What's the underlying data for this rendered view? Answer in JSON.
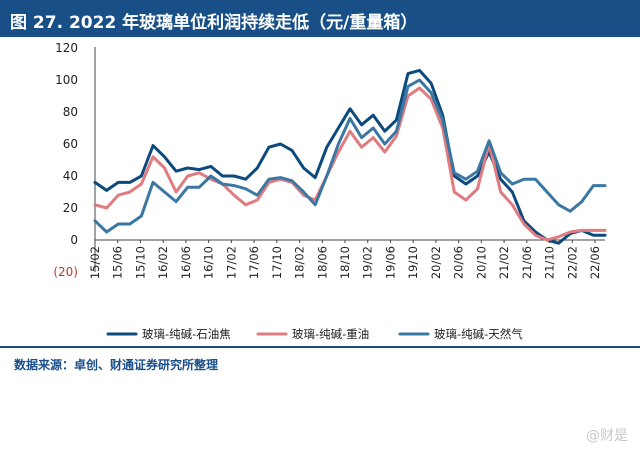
{
  "header": {
    "title": "图 27. 2022 年玻璃单位利润持续走低（元/重量箱）"
  },
  "source": {
    "text": "数据来源：卓创、财通证券研究所整理"
  },
  "watermark": {
    "text": "@财是"
  },
  "colors": {
    "title_bg": "#184f87",
    "s1": "#0c4a7d",
    "s2": "#e07b80",
    "s3": "#3a77a3"
  },
  "chart_data": {
    "type": "line",
    "title": "",
    "xlabel": "",
    "ylabel": "",
    "ylim": [
      -20,
      120
    ],
    "yticks": [
      -20,
      0,
      20,
      40,
      60,
      80,
      100,
      120
    ],
    "ytick_labels": [
      "(20)",
      "0",
      "20",
      "40",
      "60",
      "80",
      "100",
      "120"
    ],
    "xticks": [
      "15/02",
      "15/06",
      "15/10",
      "16/02",
      "16/06",
      "16/10",
      "17/02",
      "17/06",
      "17/10",
      "18/02",
      "18/06",
      "18/10",
      "19/02",
      "19/06",
      "19/10",
      "20/02",
      "20/06",
      "20/10",
      "21/02",
      "21/06",
      "21/10",
      "22/02",
      "22/06"
    ],
    "legend_position": "bottom",
    "x": [
      "15/02",
      "15/06",
      "15/10",
      "16/02",
      "16/06",
      "16/08",
      "16/10",
      "17/02",
      "17/06",
      "17/10",
      "18/02",
      "18/06",
      "18/10",
      "19/02",
      "19/06",
      "19/10",
      "20/01",
      "20/02",
      "20/03",
      "20/04",
      "20/06",
      "20/08",
      "20/10",
      "20/11",
      "20/12",
      "21/01",
      "21/02",
      "21/03",
      "21/04",
      "21/05",
      "21/06",
      "21/07",
      "21/08",
      "21/09",
      "21/10",
      "21/11",
      "21/12",
      "22/01",
      "22/02",
      "22/03",
      "22/04",
      "22/05",
      "22/06",
      "22/07",
      "22/08"
    ],
    "series": [
      {
        "name": "玻璃-纯碱-石油焦",
        "color": "#0c4a7d",
        "values": [
          36,
          31,
          36,
          36,
          40,
          59,
          52,
          43,
          45,
          44,
          46,
          40,
          40,
          38,
          45,
          58,
          60,
          56,
          45,
          39,
          58,
          70,
          82,
          72,
          78,
          68,
          75,
          104,
          106,
          98,
          78,
          40,
          35,
          40,
          55,
          38,
          30,
          12,
          5,
          0,
          -2,
          4,
          6,
          3,
          3
        ]
      },
      {
        "name": "玻璃-纯碱-重油",
        "color": "#e07b80",
        "values": [
          22,
          20,
          28,
          30,
          35,
          52,
          45,
          30,
          40,
          42,
          38,
          35,
          28,
          22,
          25,
          36,
          38,
          36,
          28,
          25,
          40,
          55,
          68,
          58,
          64,
          55,
          65,
          90,
          95,
          88,
          70,
          30,
          25,
          32,
          60,
          30,
          22,
          10,
          3,
          0,
          2,
          5,
          6,
          6,
          6
        ]
      },
      {
        "name": "玻璃-纯碱-天然气",
        "color": "#3a77a3",
        "values": [
          12,
          5,
          10,
          10,
          15,
          36,
          30,
          24,
          33,
          33,
          40,
          35,
          34,
          32,
          28,
          38,
          39,
          37,
          30,
          22,
          40,
          60,
          76,
          64,
          70,
          60,
          68,
          96,
          100,
          92,
          75,
          42,
          38,
          43,
          62,
          42,
          35,
          38,
          38,
          30,
          22,
          18,
          24,
          34,
          34
        ]
      }
    ]
  }
}
